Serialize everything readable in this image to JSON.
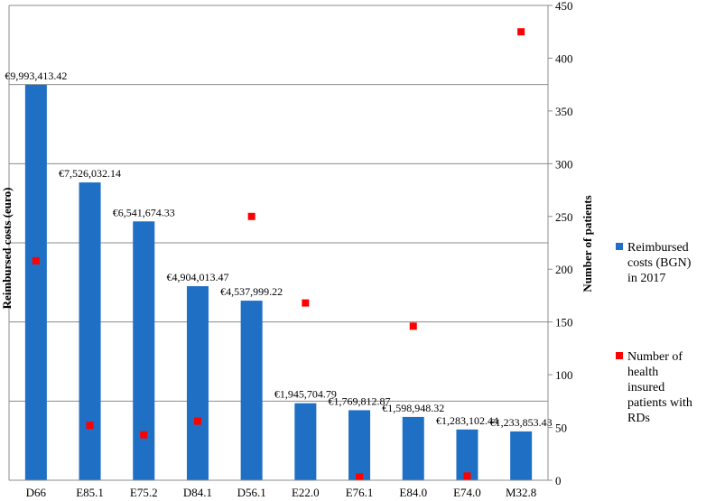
{
  "chart_data": {
    "type": "bar",
    "categories": [
      "D66",
      "E85.1",
      "E75.2",
      "D84.1",
      "D56.1",
      "E22.0",
      "E76.1",
      "E84.0",
      "E74.0",
      "M32.8"
    ],
    "series": [
      {
        "name": "Reimbursed costs (BGN) in 2017",
        "type": "bar",
        "axis": "left",
        "color": "#1f6fc5",
        "values": [
          9993413.42,
          7526032.14,
          6541674.33,
          4904013.47,
          4537999.22,
          1945704.79,
          1769812.87,
          1598948.32,
          1283102.44,
          1233853.43
        ],
        "labels": [
          "€9,993,413.42",
          "€7,526,032.14",
          "€6,541,674.33",
          "€4,904,013.47",
          "€4,537,999.22",
          "€1,945,704.79",
          "€1,769,812.87",
          "€1,598,948.32",
          "€1,283,102.44",
          "€1,233,853.43"
        ]
      },
      {
        "name": "Number of health insured patients with RDs",
        "type": "scatter",
        "axis": "right",
        "color": "#ff0000",
        "values": [
          208,
          52,
          43,
          56,
          250,
          168,
          3,
          146,
          4,
          425
        ]
      }
    ],
    "ylabel_left": "Reimbursed costs (euro)",
    "ylabel_right": "Number of patients",
    "ylim_left": [
      0,
      12000000
    ],
    "ylim_right": [
      0,
      450
    ],
    "right_ticks": [
      0,
      50,
      100,
      150,
      200,
      250,
      300,
      350,
      400,
      450
    ],
    "grid": true,
    "legend_position": "right"
  }
}
